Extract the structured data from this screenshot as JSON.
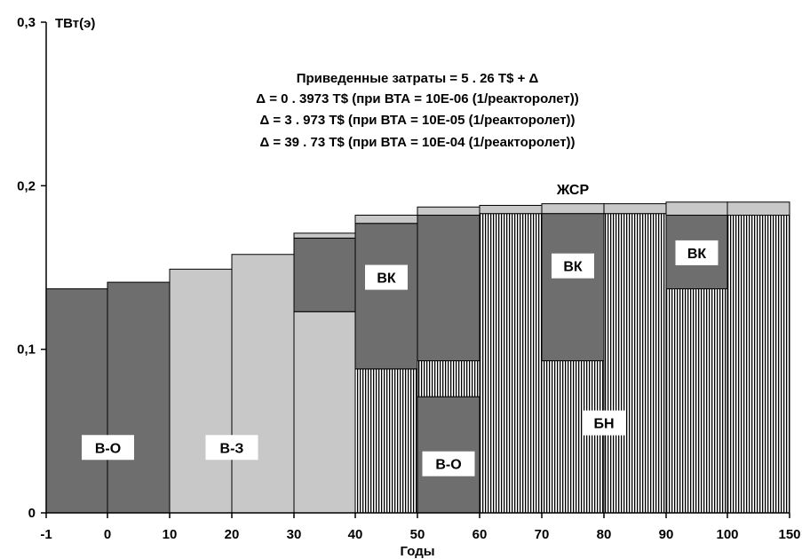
{
  "chart_data": {
    "type": "bar",
    "title": "",
    "ylabel": "ТВт(э)",
    "xlabel": "Годы",
    "ylim": [
      0,
      0.3
    ],
    "yticks": [
      "0",
      "0,1",
      "0,2",
      "0,3"
    ],
    "yticks_values": [
      0,
      0.1,
      0.2,
      0.3
    ],
    "categories": [
      "-1",
      "0",
      "10",
      "20",
      "30",
      "40",
      "50",
      "60",
      "70",
      "80",
      "90",
      "100",
      "150"
    ],
    "legend": "none",
    "grid": false,
    "annotations": [
      "Приведенные затраты  =  5 . 26 T$  +  Δ",
      "Δ  =  0 . 3973  T$  (при ВТА = 10E-06 (1/реакторолет))",
      "Δ  =  3 . 973  T$  (при ВТА = 10E-05 (1/реакторолет))",
      "Δ  =  39 . 73  T$  (при ВТА = 10E-04 (1/реакторолет))"
    ],
    "series_styles": {
      "В-О": {
        "fill": "#6e6e6e",
        "pattern": "solid"
      },
      "В-З": {
        "fill": "#c8c8c8",
        "pattern": "solid"
      },
      "ВК": {
        "fill": "#6e6e6e",
        "pattern": "solid"
      },
      "БН": {
        "fill": "#ffffff",
        "pattern": "vertical-hatch"
      },
      "ЖСР": {
        "fill": "#c8c8c8",
        "pattern": "solid"
      }
    },
    "bars": [
      {
        "x_from": "-1",
        "x_to": "0",
        "segments": [
          {
            "series": "В-О",
            "from": 0,
            "to": 0.137
          }
        ]
      },
      {
        "x_from": "0",
        "x_to": "10",
        "segments": [
          {
            "series": "В-О",
            "from": 0,
            "to": 0.141
          }
        ]
      },
      {
        "x_from": "10",
        "x_to": "20",
        "segments": [
          {
            "series": "В-З",
            "from": 0,
            "to": 0.149
          }
        ]
      },
      {
        "x_from": "20",
        "x_to": "30",
        "segments": [
          {
            "series": "В-З",
            "from": 0,
            "to": 0.158
          }
        ]
      },
      {
        "x_from": "30",
        "x_to": "40",
        "segments": [
          {
            "series": "В-З",
            "from": 0,
            "to": 0.123
          },
          {
            "series": "ВК",
            "from": 0.123,
            "to": 0.168
          },
          {
            "series": "ЖСР",
            "from": 0.168,
            "to": 0.171
          }
        ]
      },
      {
        "x_from": "40",
        "x_to": "50",
        "segments": [
          {
            "series": "БН",
            "from": 0,
            "to": 0.088
          },
          {
            "series": "ВК",
            "from": 0.088,
            "to": 0.177
          },
          {
            "series": "ЖСР",
            "from": 0.177,
            "to": 0.182
          }
        ]
      },
      {
        "x_from": "50",
        "x_to": "60",
        "segments": [
          {
            "series": "В-О",
            "from": 0,
            "to": 0.071
          },
          {
            "series": "БН",
            "from": 0.071,
            "to": 0.093
          },
          {
            "series": "ВК",
            "from": 0.093,
            "to": 0.182
          },
          {
            "series": "ЖСР",
            "from": 0.182,
            "to": 0.187
          }
        ]
      },
      {
        "x_from": "60",
        "x_to": "70",
        "segments": [
          {
            "series": "БН",
            "from": 0,
            "to": 0.183
          },
          {
            "series": "ЖСР",
            "from": 0.183,
            "to": 0.188
          }
        ]
      },
      {
        "x_from": "70",
        "x_to": "80",
        "segments": [
          {
            "series": "БН",
            "from": 0,
            "to": 0.093
          },
          {
            "series": "ВК",
            "from": 0.093,
            "to": 0.183
          },
          {
            "series": "ЖСР",
            "from": 0.183,
            "to": 0.189
          }
        ]
      },
      {
        "x_from": "80",
        "x_to": "90",
        "segments": [
          {
            "series": "БН",
            "from": 0,
            "to": 0.183
          },
          {
            "series": "ЖСР",
            "from": 0.183,
            "to": 0.189
          }
        ]
      },
      {
        "x_from": "90",
        "x_to": "100",
        "segments": [
          {
            "series": "БН",
            "from": 0,
            "to": 0.137
          },
          {
            "series": "ВК",
            "from": 0.137,
            "to": 0.182
          },
          {
            "series": "ЖСР",
            "from": 0.182,
            "to": 0.19
          }
        ]
      },
      {
        "x_from": "100",
        "x_to": "150",
        "segments": [
          {
            "series": "БН",
            "from": 0,
            "to": 0.182
          },
          {
            "series": "ЖСР",
            "from": 0.182,
            "to": 0.19
          }
        ]
      }
    ],
    "segment_labels": [
      {
        "text": "В-О",
        "boxed": true,
        "bar": [
          0,
          1
        ],
        "y": 0.04
      },
      {
        "text": "В-З",
        "boxed": true,
        "bar": [
          2,
          3
        ],
        "y": 0.04
      },
      {
        "text": "ВК",
        "boxed": true,
        "bar": [
          5,
          5
        ],
        "y": 0.144
      },
      {
        "text": "В-О",
        "boxed": true,
        "bar": [
          6,
          6
        ],
        "y": 0.03
      },
      {
        "text": "ВК",
        "boxed": true,
        "bar": [
          8,
          8
        ],
        "y": 0.151
      },
      {
        "text": "ВК",
        "boxed": true,
        "bar": [
          10,
          10
        ],
        "y": 0.159
      },
      {
        "text": "БН",
        "boxed": true,
        "bar": [
          8,
          9
        ],
        "y": 0.055
      },
      {
        "text": "ЖСР",
        "boxed": false,
        "bar": [
          8,
          8
        ],
        "y": 0.198
      }
    ]
  }
}
